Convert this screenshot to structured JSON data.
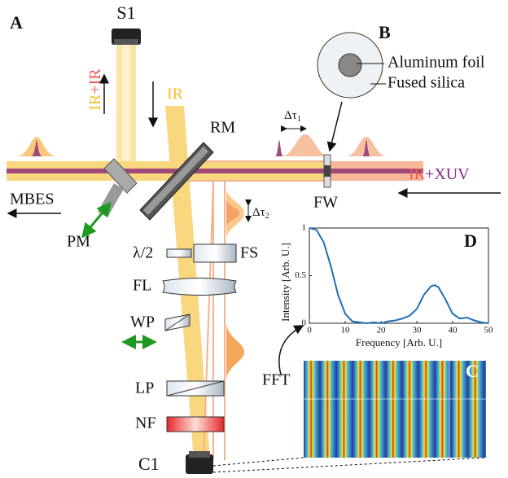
{
  "panels": {
    "a": "A",
    "b": "B",
    "c": "C"
  },
  "labels": {
    "s1": "S1",
    "ir_up": "IR",
    "ir_up_plus": "+IR",
    "ir_down": "IR",
    "rm": "RM",
    "dt1": "Δτ",
    "dt1_sub": "1",
    "ir_right": "IR",
    "xuv": "+XUV",
    "mbes": "MBES",
    "pm": "PM",
    "fw": "FW",
    "half_wave": "λ/2",
    "fs": "FS",
    "fl": "FL",
    "wp": "WP",
    "lp": "LP",
    "nf": "NF",
    "c1": "C1",
    "fft": "FFT",
    "dt2": "Δτ",
    "dt2_sub": "2",
    "aluminum": "Aluminum foil",
    "fused": "Fused silica"
  },
  "chart_data": {
    "type": "line",
    "panel_label": "D",
    "xlabel": "Frequency [Arb. U.]",
    "ylabel": "Intensity [Arb. U.]",
    "x": [
      0,
      2,
      4,
      6,
      8,
      10,
      12,
      14,
      16,
      18,
      20,
      22,
      24,
      26,
      28,
      30,
      32,
      34,
      35,
      36,
      38,
      40,
      42,
      44,
      46,
      48,
      50
    ],
    "values": [
      1,
      0.98,
      0.85,
      0.6,
      0.3,
      0.1,
      0.02,
      0.01,
      0,
      0.01,
      0,
      0.02,
      0.03,
      0.05,
      0.08,
      0.15,
      0.3,
      0.39,
      0.4,
      0.38,
      0.25,
      0.1,
      0.05,
      0.06,
      0.03,
      0.01,
      0
    ],
    "color": "#1f6fb5",
    "xlim": [
      0,
      50
    ],
    "ylim": [
      0,
      1
    ],
    "xticks": [
      0,
      10,
      20,
      30,
      40,
      50
    ],
    "yticks": [
      0,
      0.5,
      1
    ]
  }
}
